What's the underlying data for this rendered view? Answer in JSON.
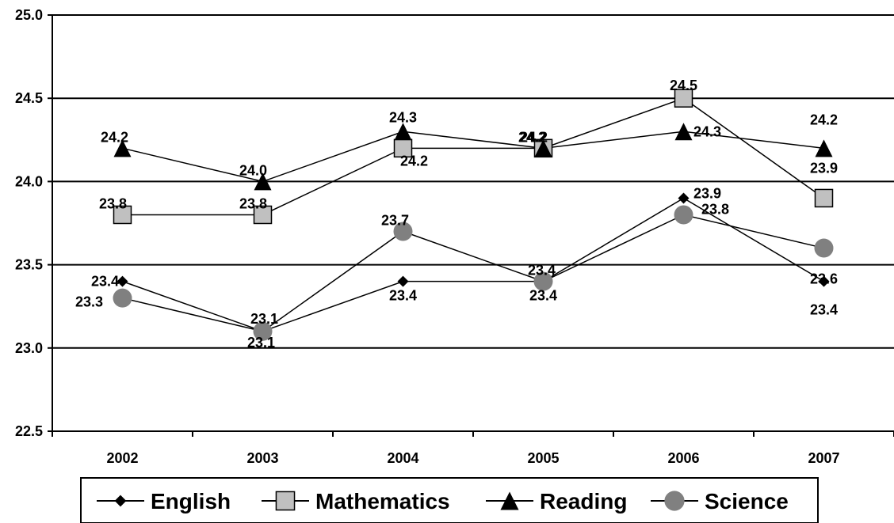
{
  "chart_data": {
    "type": "line",
    "categories": [
      "2002",
      "2003",
      "2004",
      "2005",
      "2006",
      "2007"
    ],
    "ylim": [
      22.5,
      25.0
    ],
    "yticks": [
      "22.5",
      "23.0",
      "23.5",
      "24.0",
      "24.5",
      "25.0"
    ],
    "grid": true,
    "legend_position": "bottom",
    "series": [
      {
        "name": "English",
        "marker": "diamond",
        "color": "#000000",
        "values": [
          23.4,
          23.1,
          23.4,
          23.4,
          23.9,
          23.4
        ],
        "labels": [
          "23.4",
          "23.1",
          "23.4",
          "23.4",
          "23.9",
          "23.4"
        ]
      },
      {
        "name": "Mathematics",
        "marker": "square",
        "color": "#c0c0c0",
        "values": [
          23.8,
          23.8,
          24.2,
          24.2,
          24.5,
          23.9
        ],
        "labels": [
          "23.8",
          "23.8",
          "24.2",
          "24.2",
          "24.5",
          "23.9"
        ]
      },
      {
        "name": "Reading",
        "marker": "triangle",
        "color": "#000000",
        "values": [
          24.2,
          24.0,
          24.3,
          24.2,
          24.3,
          24.2
        ],
        "labels": [
          "24.2",
          "24.0",
          "24.3",
          "24.2",
          "24.3",
          "24.2"
        ]
      },
      {
        "name": "Science",
        "marker": "circle",
        "color": "#808080",
        "values": [
          23.3,
          23.1,
          23.7,
          23.4,
          23.8,
          23.6
        ],
        "labels": [
          "23.3",
          "23.1",
          "23.7",
          "23.4",
          "23.8",
          "23.6"
        ]
      }
    ]
  }
}
